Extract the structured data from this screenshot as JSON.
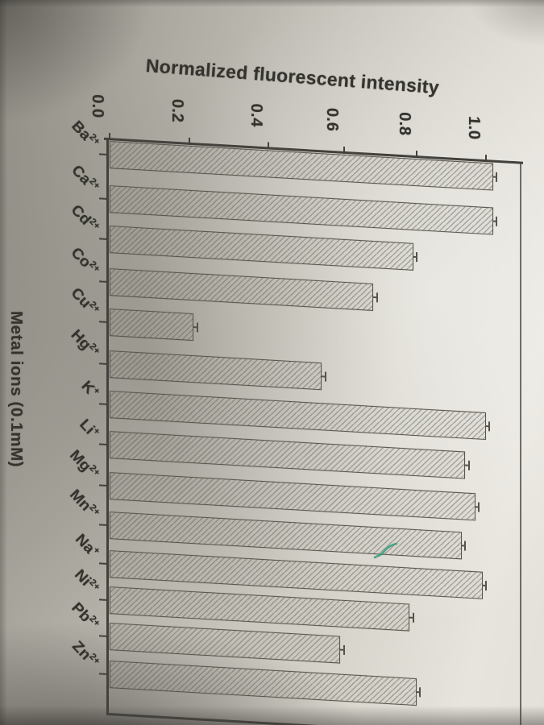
{
  "chart_data": {
    "type": "bar",
    "presentation": "photo of printed page, chart rotated 90 degrees (bars run horizontally, value axis along top)",
    "value_axis_label": "Normalized fluorescent intensity",
    "category_axis_label": "Metal ions (0.1mM)",
    "value_ticks": [
      0.0,
      0.2,
      0.4,
      0.6,
      0.8,
      1.0
    ],
    "value_tick_labels": [
      "0.0",
      "0.2",
      "0.4",
      "0.6",
      "0.8",
      "1.0"
    ],
    "value_range": [
      0,
      1.05
    ],
    "grid": false,
    "bar_style": {
      "fill": "paper (unfilled)",
      "hatch": "thin diagonal / lines",
      "outline": "#57544c"
    },
    "categories": [
      {
        "label": "Ba2+",
        "base": "Ba",
        "charge": "2+",
        "value": 1.02,
        "error": 0.01
      },
      {
        "label": "Ca2+",
        "base": "Ca",
        "charge": "2+",
        "value": 1.02,
        "error": 0.01
      },
      {
        "label": "Cd2+",
        "base": "Cd",
        "charge": "2+",
        "value": 0.79,
        "error": 0.01
      },
      {
        "label": "Co2+",
        "base": "Co",
        "charge": "2+",
        "value": 0.68,
        "error": 0.01
      },
      {
        "label": "Cu2+",
        "base": "Cu",
        "charge": "2+",
        "value": 0.21,
        "error": 0.01
      },
      {
        "label": "Hg2+",
        "base": "Hg",
        "charge": "2+",
        "value": 0.54,
        "error": 0.01
      },
      {
        "label": "K+",
        "base": "K",
        "charge": "+",
        "value": 1.0,
        "error": 0.01
      },
      {
        "label": "Li+",
        "base": "Li",
        "charge": "+",
        "value": 0.94,
        "error": 0.01
      },
      {
        "label": "Mg2+",
        "base": "Mg",
        "charge": "2+",
        "value": 0.97,
        "error": 0.01
      },
      {
        "label": "Mn2+",
        "base": "Mn",
        "charge": "2+",
        "value": 0.93,
        "error": 0.01
      },
      {
        "label": "Na+",
        "base": "Na",
        "charge": "+",
        "value": 0.99,
        "error": 0.01
      },
      {
        "label": "Ni2+",
        "base": "Ni",
        "charge": "2+",
        "value": 0.78,
        "error": 0.01
      },
      {
        "label": "Pb2+",
        "base": "Pb",
        "charge": "2+",
        "value": 0.59,
        "error": 0.01
      },
      {
        "label": "Zn2+",
        "base": "Zn",
        "charge": "2+",
        "value": 0.8,
        "error": 0.01
      }
    ],
    "annotation": {
      "type": "pen-mark",
      "color": "#2f9e7d",
      "description": "small green check-like pen squiggle on the Na+ bar"
    },
    "colors": {
      "axis": "#43413c",
      "text": "#33322d",
      "paper_light": "#e7e4dd",
      "paper_dark": "#8e8b83",
      "pen_mark": "#2f9e7d"
    }
  }
}
